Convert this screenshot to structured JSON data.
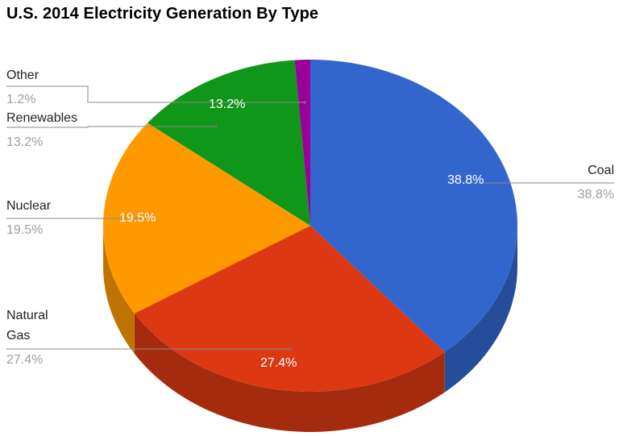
{
  "title": "U.S. 2014 Electricity Generation By Type",
  "chart_data": {
    "type": "pie",
    "title": "U.S. 2014 Electricity Generation By Type",
    "style": "3d",
    "legend_position": "labeled",
    "slices": [
      {
        "name": "Coal",
        "value": 38.8,
        "label": "38.8%",
        "color": "#3366cc",
        "side_color": "#264d99"
      },
      {
        "name": "Natural Gas",
        "value": 27.4,
        "label": "27.4%",
        "color": "#dc3912",
        "side_color": "#a52b0e"
      },
      {
        "name": "Nuclear",
        "value": 19.5,
        "label": "19.5%",
        "color": "#ff9900",
        "side_color": "#bf7300"
      },
      {
        "name": "Renewables",
        "value": 13.2,
        "label": "13.2%",
        "color": "#109618",
        "side_color": "#0c7112"
      },
      {
        "name": "Other",
        "value": 1.2,
        "label": "1.2%",
        "color": "#990099",
        "side_color": "#730073"
      }
    ]
  },
  "labels": {
    "coal": {
      "name": "Coal",
      "pct": "38.8%",
      "inside": "38.8%"
    },
    "natural_gas": {
      "name_line1": "Natural",
      "name_line2": "Gas",
      "pct": "27.4%",
      "inside": "27.4%"
    },
    "nuclear": {
      "name": "Nuclear",
      "pct": "19.5%",
      "inside": "19.5%"
    },
    "renewables": {
      "name": "Renewables",
      "pct": "13.2%",
      "inside": "13.2%"
    },
    "other": {
      "name": "Other",
      "pct": "1.2%"
    }
  }
}
